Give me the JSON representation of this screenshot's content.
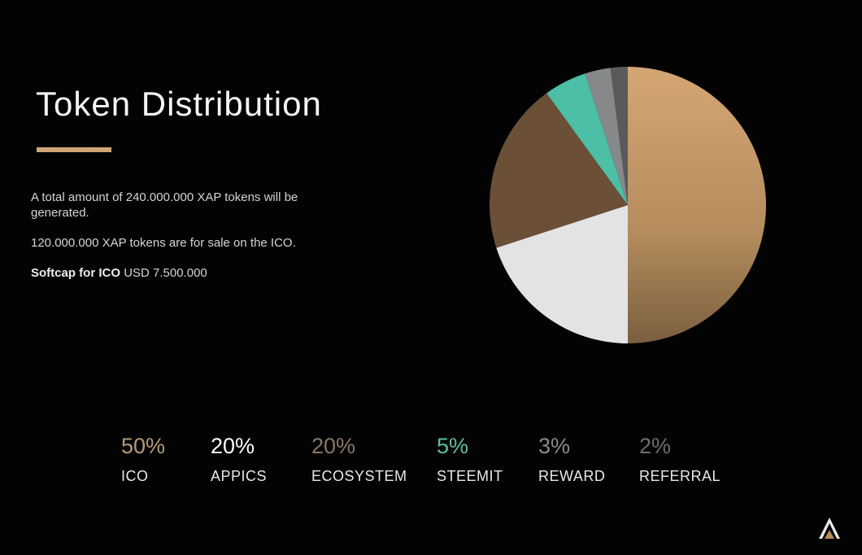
{
  "page": {
    "title": "Token Distribution",
    "description": [
      "A total amount of 240.000.000 XAP tokens will be generated.",
      "120.000.000 XAP tokens are for sale on the ICO."
    ],
    "softcap_label": "Softcap for ICO",
    "softcap_value": "USD 7.500.000"
  },
  "colors": {
    "accent": "#cfa676",
    "background": "#030303"
  },
  "chart_data": {
    "type": "pie",
    "title": "",
    "slices": [
      {
        "label": "ICO",
        "value": 50,
        "pct_text": "50%",
        "color": "#c49a68",
        "text_color": "#b59a78"
      },
      {
        "label": "APPICS",
        "value": 20,
        "pct_text": "20%",
        "color": "#e2e3e4",
        "text_color": "#ffffff"
      },
      {
        "label": "ECOSYSTEM",
        "value": 20,
        "pct_text": "20%",
        "color": "#6b4f37",
        "text_color": "#8a7766"
      },
      {
        "label": "STEEMIT",
        "value": 5,
        "pct_text": "5%",
        "color": "#4cbfa6",
        "text_color": "#5fbfa5"
      },
      {
        "label": "REWARD",
        "value": 3,
        "pct_text": "3%",
        "color": "#87888a",
        "text_color": "#8a8a8a"
      },
      {
        "label": "REFERRAL",
        "value": 2,
        "pct_text": "2%",
        "color": "#5a5a5c",
        "text_color": "#6e6e6e"
      }
    ]
  }
}
